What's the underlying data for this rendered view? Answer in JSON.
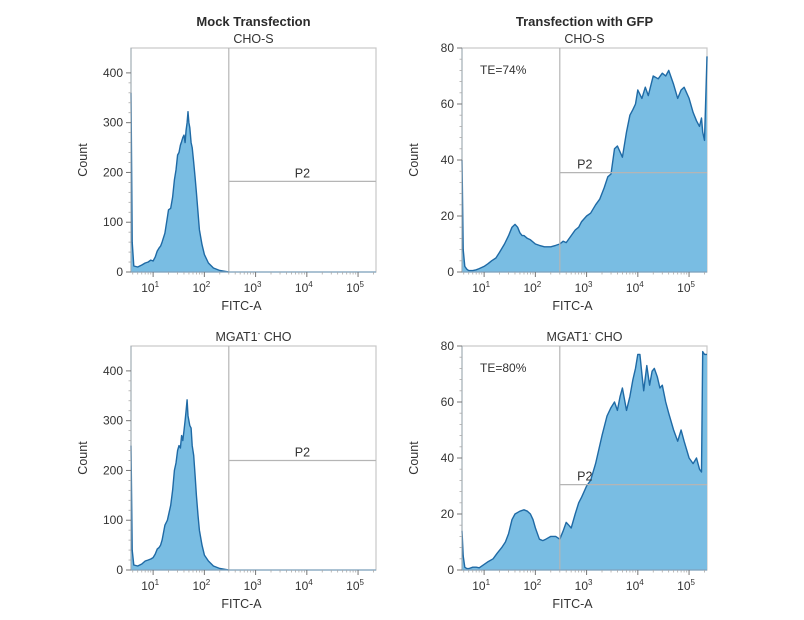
{
  "figure": {
    "column_titles": [
      "Mock Transfection",
      "Transfection with GFP"
    ],
    "fill_color": "#79bde3",
    "line_color": "#1f6aa5",
    "gate_color": "#b5b5b5",
    "frame_color": "#c8c8c8"
  },
  "chart_data": [
    {
      "type": "area",
      "column_title": "Mock Transfection",
      "title": "CHO-S",
      "xlabel": "FITC-A",
      "ylabel": "Count",
      "xscale": "log",
      "xlim": [
        3.7,
        224000
      ],
      "ylim": [
        0,
        450
      ],
      "xticks": [
        10,
        100,
        1000,
        10000,
        100000
      ],
      "xtick_labels": [
        "10",
        "10",
        "10",
        "10",
        "10"
      ],
      "xtick_exponents": [
        "1",
        "2",
        "3",
        "4",
        "5"
      ],
      "yticks": [
        0,
        100,
        200,
        300,
        400
      ],
      "ytick_labels": [
        "0",
        "100",
        "200",
        "300",
        "400"
      ],
      "gate": {
        "label": "P2",
        "x_start": 300,
        "x_end": 224000,
        "y": 182
      },
      "annotation": "",
      "series": {
        "x": [
          3.7,
          3.9,
          4.2,
          5,
          6,
          7,
          8,
          9,
          10,
          11,
          12,
          13,
          14,
          15,
          17,
          19,
          20,
          22,
          24,
          26,
          28,
          30,
          32,
          34,
          36,
          38,
          40,
          42,
          44,
          46,
          48,
          50,
          52,
          55,
          58,
          62,
          66,
          70,
          75,
          80,
          90,
          100,
          120,
          150,
          200,
          260,
          300
        ],
        "y": [
          360,
          60,
          12,
          10,
          14,
          18,
          20,
          24,
          22,
          30,
          42,
          48,
          52,
          60,
          78,
          110,
          125,
          128,
          150,
          185,
          205,
          235,
          240,
          255,
          262,
          270,
          275,
          260,
          285,
          300,
          322,
          300,
          290,
          260,
          250,
          220,
          190,
          160,
          120,
          85,
          55,
          35,
          18,
          8,
          3,
          1,
          0
        ]
      }
    },
    {
      "type": "area",
      "column_title": "Transfection with GFP",
      "title": "CHO-S",
      "xlabel": "FITC-A",
      "ylabel": "Count",
      "xscale": "log",
      "xlim": [
        3.7,
        224000
      ],
      "ylim": [
        0,
        80
      ],
      "xticks": [
        10,
        100,
        1000,
        10000,
        100000
      ],
      "xtick_labels": [
        "10",
        "10",
        "10",
        "10",
        "10"
      ],
      "xtick_exponents": [
        "1",
        "2",
        "3",
        "4",
        "5"
      ],
      "yticks": [
        0,
        20,
        40,
        60,
        80
      ],
      "ytick_labels": [
        "0",
        "20",
        "40",
        "60",
        "80"
      ],
      "gate": {
        "label": "P2",
        "x_start": 300,
        "x_end": 224000,
        "y": 35.5
      },
      "annotation": "TE=74%",
      "series": {
        "x": [
          3.7,
          3.9,
          4.2,
          4.6,
          5,
          6,
          7,
          8,
          10,
          12,
          14,
          17,
          20,
          25,
          30,
          35,
          40,
          45,
          50,
          55,
          60,
          70,
          80,
          100,
          120,
          150,
          200,
          250,
          300,
          350,
          400,
          500,
          600,
          700,
          800,
          1000,
          1200,
          1500,
          1800,
          2200,
          2600,
          3000,
          3500,
          4000,
          5000,
          6000,
          7000,
          8000,
          9000,
          10000,
          12000,
          14000,
          16000,
          20000,
          25000,
          30000,
          35000,
          40000,
          50000,
          60000,
          70000,
          80000,
          100000,
          120000,
          140000,
          160000,
          175000,
          185000,
          200000,
          224000
        ],
        "y": [
          40,
          8,
          2,
          1,
          0.5,
          0.5,
          0.8,
          1.2,
          2,
          3,
          4,
          5,
          7,
          10,
          13,
          16,
          17,
          16,
          14,
          13,
          13,
          12,
          11.5,
          10,
          9.5,
          9,
          9,
          9.5,
          10,
          11,
          10.5,
          13,
          15,
          16,
          18,
          20,
          21,
          24,
          26,
          30,
          34,
          35,
          44,
          45,
          41,
          50,
          56,
          58,
          60,
          65,
          62,
          66,
          63,
          70,
          69,
          71,
          70,
          72,
          67,
          62,
          65,
          66,
          62,
          57,
          54,
          52,
          55,
          50,
          47,
          77
        ]
      }
    },
    {
      "type": "area",
      "column_title": "Mock Transfection",
      "title": "MGAT1",
      "title_superscript": "-",
      "title_suffix": " CHO",
      "xlabel": "FITC-A",
      "ylabel": "Count",
      "xscale": "log",
      "xlim": [
        3.7,
        224000
      ],
      "ylim": [
        0,
        450
      ],
      "xticks": [
        10,
        100,
        1000,
        10000,
        100000
      ],
      "xtick_labels": [
        "10",
        "10",
        "10",
        "10",
        "10"
      ],
      "xtick_exponents": [
        "1",
        "2",
        "3",
        "4",
        "5"
      ],
      "yticks": [
        0,
        100,
        200,
        300,
        400
      ],
      "ytick_labels": [
        "0",
        "100",
        "200",
        "300",
        "400"
      ],
      "gate": {
        "label": "P2",
        "x_start": 300,
        "x_end": 224000,
        "y": 220
      },
      "annotation": "",
      "series": {
        "x": [
          3.7,
          3.9,
          4.2,
          5,
          6,
          7,
          8,
          9,
          10,
          11,
          12,
          13,
          14,
          15,
          17,
          19,
          20,
          22,
          24,
          26,
          28,
          30,
          32,
          34,
          36,
          38,
          40,
          42,
          44,
          46,
          48,
          50,
          52,
          55,
          58,
          62,
          66,
          70,
          75,
          80,
          90,
          100,
          120,
          150,
          200,
          260,
          300
        ],
        "y": [
          250,
          40,
          10,
          8,
          12,
          18,
          20,
          22,
          25,
          32,
          42,
          45,
          50,
          60,
          90,
          100,
          110,
          130,
          160,
          200,
          215,
          240,
          250,
          245,
          270,
          260,
          280,
          300,
          320,
          342,
          310,
          300,
          290,
          285,
          250,
          230,
          190,
          150,
          110,
          80,
          50,
          30,
          18,
          8,
          3,
          1,
          0
        ]
      }
    },
    {
      "type": "area",
      "column_title": "Transfection with GFP",
      "title": "MGAT1",
      "title_superscript": "-",
      "title_suffix": " CHO",
      "xlabel": "FITC-A",
      "ylabel": "Count",
      "xscale": "log",
      "xlim": [
        3.7,
        224000
      ],
      "ylim": [
        0,
        80
      ],
      "xticks": [
        10,
        100,
        1000,
        10000,
        100000
      ],
      "xtick_labels": [
        "10",
        "10",
        "10",
        "10",
        "10"
      ],
      "xtick_exponents": [
        "1",
        "2",
        "3",
        "4",
        "5"
      ],
      "yticks": [
        0,
        20,
        40,
        60,
        80
      ],
      "ytick_labels": [
        "0",
        "20",
        "40",
        "60",
        "80"
      ],
      "gate": {
        "label": "P2",
        "x_start": 300,
        "x_end": 224000,
        "y": 30.5
      },
      "annotation": "TE=80%",
      "series": {
        "x": [
          3.7,
          3.9,
          4.2,
          4.6,
          5,
          6,
          7,
          8,
          10,
          12,
          15,
          18,
          22,
          26,
          30,
          35,
          40,
          50,
          60,
          70,
          80,
          90,
          100,
          120,
          140,
          160,
          200,
          250,
          300,
          350,
          400,
          450,
          500,
          600,
          700,
          800,
          1000,
          1200,
          1500,
          2000,
          2500,
          3000,
          3500,
          4000,
          4500,
          5000,
          6000,
          7000,
          8000,
          9000,
          10000,
          11000,
          12000,
          13000,
          15000,
          17000,
          19000,
          21000,
          24000,
          27000,
          30000,
          35000,
          40000,
          50000,
          60000,
          70000,
          80000,
          100000,
          120000,
          140000,
          160000,
          175000,
          185000,
          200000,
          224000
        ],
        "y": [
          14,
          5,
          1,
          0.5,
          0.5,
          1,
          1,
          0.8,
          2,
          3,
          4,
          6,
          8,
          10,
          13,
          18,
          20,
          21,
          21.5,
          21,
          20,
          18,
          15,
          11,
          10.5,
          11,
          12,
          12,
          11,
          14,
          17,
          16,
          15,
          20,
          24,
          26,
          30,
          32,
          38,
          48,
          55,
          58,
          60,
          57,
          62,
          65,
          57,
          62,
          68,
          72,
          77,
          77,
          70,
          64,
          73,
          66,
          71,
          72,
          69,
          65,
          66,
          60,
          56,
          50,
          46,
          50,
          46,
          40,
          38,
          40,
          36,
          35,
          78,
          77,
          77
        ]
      }
    }
  ]
}
